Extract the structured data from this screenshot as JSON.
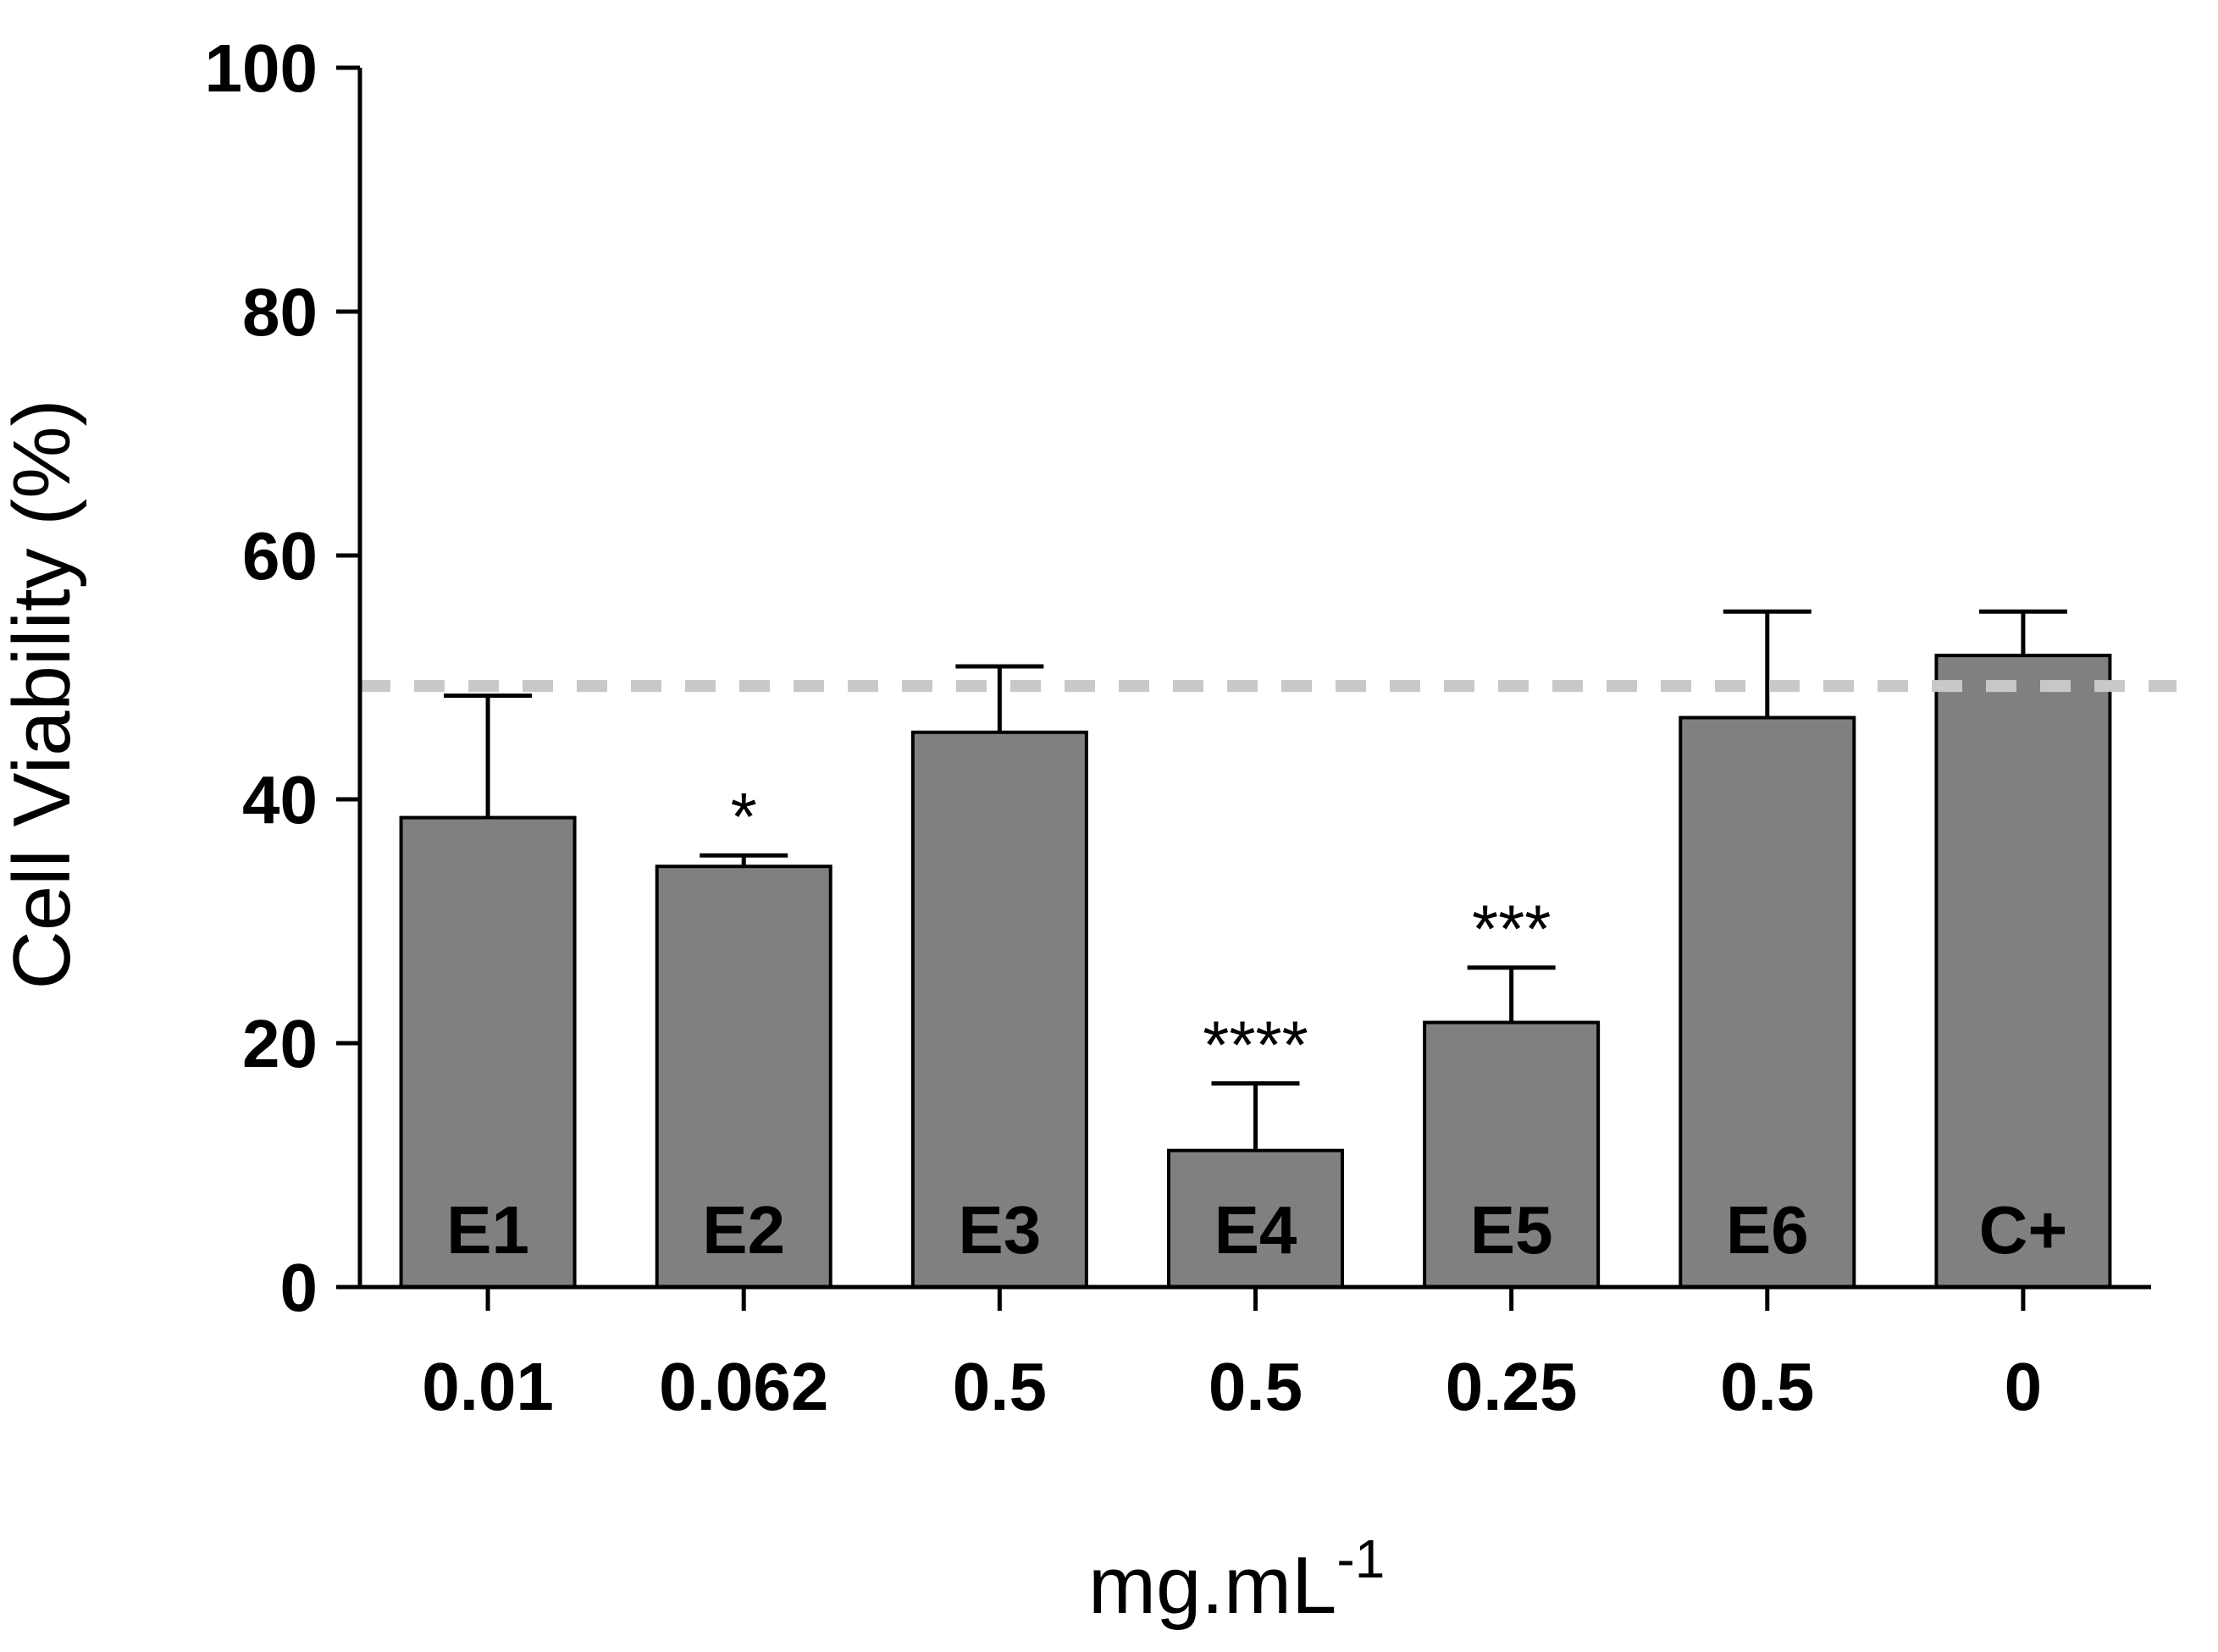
{
  "chart_data": {
    "type": "bar",
    "title": "",
    "xlabel": "mg.mL",
    "xlabel_superscript": "-1",
    "ylabel": "Cell Viability (%)",
    "ylim": [
      0,
      100
    ],
    "yticks": [
      "0",
      "20",
      "40",
      "60",
      "80",
      "100"
    ],
    "categories": [
      "0.01",
      "0.062",
      "0.5",
      "0.5",
      "0.25",
      "0.5",
      "0"
    ],
    "bar_labels": [
      "E1",
      "E2",
      "E3",
      "E4",
      "E5",
      "E6",
      "C+"
    ],
    "values": [
      38.5,
      34.5,
      45.5,
      11.2,
      21.7,
      46.7,
      51.8
    ],
    "error_upper": [
      48.5,
      35.4,
      50.9,
      16.7,
      26.2,
      55.4,
      55.4
    ],
    "significance": [
      "",
      "*",
      "",
      "****",
      "***",
      "",
      ""
    ],
    "reference_line": 49.3,
    "colors": {
      "bar_fill": "#808080",
      "bar_stroke": "#000000",
      "reference_line": "#c8c8c8",
      "axis": "#000000"
    }
  }
}
